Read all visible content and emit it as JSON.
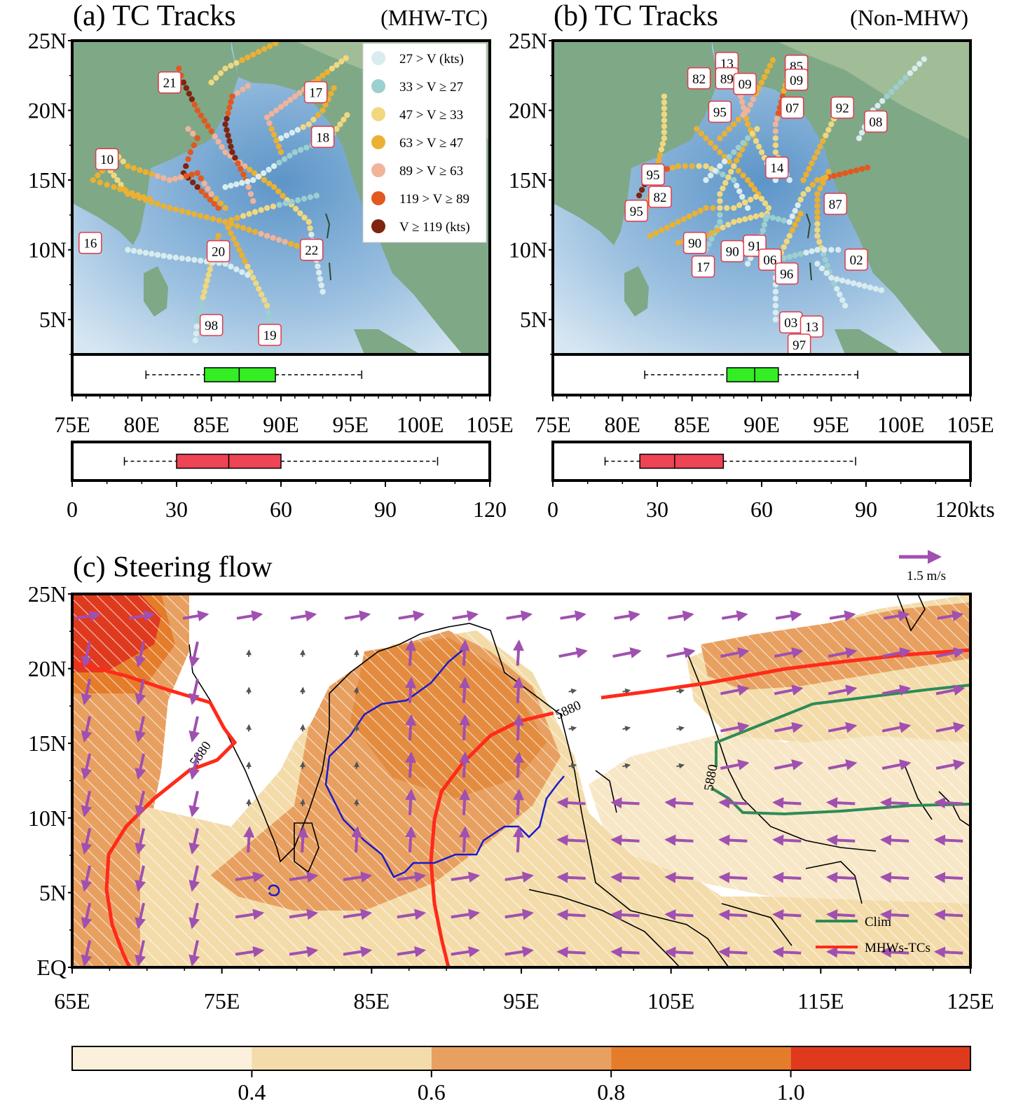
{
  "colors": {
    "sea_deep": "#a9c9e4",
    "sea_light": "#d9e8f3",
    "land": "#7fa886",
    "land_light": "#b7cdb1",
    "box_green": "#33ee22",
    "box_red": "#ee4455",
    "track_label_border": "#e03a4a",
    "clim_line": "#2e8b57",
    "mhw_line": "#ff2a1a",
    "blue_contour": "#1a1acc",
    "vector_sig": "#a050b0",
    "vector_insig": "#555555"
  },
  "wind_classes": [
    {
      "label": "27 > V (kts)",
      "color": "#d9ecef"
    },
    {
      "label": "33 > V ≥ 27",
      "color": "#9ccfd0"
    },
    {
      "label": "47 > V ≥ 33",
      "color": "#f0d880"
    },
    {
      "label": "63 > V ≥ 47",
      "color": "#ebb132"
    },
    {
      "label": "89 > V ≥ 63",
      "color": "#efb49a"
    },
    {
      "label": "119 > V ≥ 89",
      "color": "#e2581f"
    },
    {
      "label": "V ≥ 119 (kts)",
      "color": "#7e2410"
    }
  ],
  "panels": {
    "a": {
      "title": "(a) TC Tracks",
      "tag": "(MHW-TC)",
      "track_labels": [
        {
          "text": "21",
          "lon": 82.0,
          "lat": 22.0
        },
        {
          "text": "17",
          "lon": 92.5,
          "lat": 21.3
        },
        {
          "text": "18",
          "lon": 93.0,
          "lat": 18.1
        },
        {
          "text": "10",
          "lon": 77.5,
          "lat": 16.5
        },
        {
          "text": "16",
          "lon": 76.3,
          "lat": 10.5
        },
        {
          "text": "20",
          "lon": 85.5,
          "lat": 9.9
        },
        {
          "text": "22",
          "lon": 92.2,
          "lat": 10.0
        },
        {
          "text": "98",
          "lon": 85.0,
          "lat": 4.6
        },
        {
          "text": "19",
          "lon": 89.2,
          "lat": 3.9
        }
      ],
      "box_lon": {
        "whisker_low": 80.3,
        "q1": 84.5,
        "median": 87.0,
        "q3": 89.6,
        "whisker_high": 95.8
      },
      "box_speed": {
        "whisker_low": 15,
        "q1": 30,
        "median": 45,
        "q3": 60,
        "whisker_high": 105
      }
    },
    "b": {
      "title": "(b) TC Tracks",
      "tag": "(Non-MHW)",
      "track_labels": [
        {
          "text": "13",
          "lon": 87.5,
          "lat": 23.4
        },
        {
          "text": "85",
          "lon": 92.5,
          "lat": 23.2
        },
        {
          "text": "82",
          "lon": 85.5,
          "lat": 22.3
        },
        {
          "text": "89",
          "lon": 87.5,
          "lat": 22.3
        },
        {
          "text": "09",
          "lon": 88.8,
          "lat": 21.9
        },
        {
          "text": "09",
          "lon": 92.5,
          "lat": 22.2
        },
        {
          "text": "95",
          "lon": 87.0,
          "lat": 19.9
        },
        {
          "text": "07",
          "lon": 92.2,
          "lat": 20.2
        },
        {
          "text": "92",
          "lon": 95.8,
          "lat": 20.2
        },
        {
          "text": "08",
          "lon": 98.2,
          "lat": 19.2
        },
        {
          "text": "14",
          "lon": 91.1,
          "lat": 15.9
        },
        {
          "text": "95",
          "lon": 82.2,
          "lat": 15.4
        },
        {
          "text": "82",
          "lon": 82.7,
          "lat": 13.8
        },
        {
          "text": "95",
          "lon": 81.0,
          "lat": 12.8
        },
        {
          "text": "87",
          "lon": 95.3,
          "lat": 13.3
        },
        {
          "text": "90",
          "lon": 85.2,
          "lat": 10.5
        },
        {
          "text": "91",
          "lon": 89.5,
          "lat": 10.3
        },
        {
          "text": "90",
          "lon": 87.9,
          "lat": 9.9
        },
        {
          "text": "17",
          "lon": 85.8,
          "lat": 8.8
        },
        {
          "text": "06",
          "lon": 90.6,
          "lat": 9.3
        },
        {
          "text": "02",
          "lon": 96.8,
          "lat": 9.3
        },
        {
          "text": "96",
          "lon": 91.8,
          "lat": 8.3
        },
        {
          "text": "03",
          "lon": 92.1,
          "lat": 4.8
        },
        {
          "text": "13",
          "lon": 93.6,
          "lat": 4.5
        },
        {
          "text": "97",
          "lon": 92.7,
          "lat": 3.2
        }
      ],
      "box_lon": {
        "whisker_low": 81.6,
        "q1": 87.5,
        "median": 89.5,
        "q3": 91.2,
        "whisker_high": 96.9
      },
      "box_speed": {
        "whisker_low": 15,
        "q1": 25,
        "median": 35,
        "q3": 49,
        "whisker_high": 87
      }
    },
    "c": {
      "title": "(c) Steering flow",
      "ref_vector_label": "1.5 m/s",
      "contour_label": "5880",
      "legend": [
        {
          "label": "Clim",
          "color": "#2e8b57"
        },
        {
          "label": "MHWs-TCs",
          "color": "#ff2a1a"
        }
      ]
    }
  },
  "axes": {
    "ab_lat_ticks": [
      "25N",
      "20N",
      "15N",
      "10N",
      "5N"
    ],
    "ab_lon_ticks": [
      "75E",
      "80E",
      "85E",
      "90E",
      "95E",
      "100E",
      "105E"
    ],
    "speed_ticks_a": [
      "0",
      "30",
      "60",
      "90",
      "120"
    ],
    "speed_ticks_b": [
      "0",
      "30",
      "60",
      "90",
      "120kts"
    ],
    "c_lat_ticks": [
      "25N",
      "20N",
      "15N",
      "10N",
      "5N",
      "EQ"
    ],
    "c_lon_ticks": [
      "65E",
      "75E",
      "85E",
      "95E",
      "105E",
      "115E",
      "125E"
    ]
  },
  "colorbar": {
    "ticks": [
      "0.4",
      "0.6",
      "0.8",
      "1.0"
    ],
    "bins": [
      "#fbf0dc",
      "#f3dcaa",
      "#e8a060",
      "#e47c2a",
      "#e03a1e"
    ]
  },
  "chart_data": [
    {
      "type": "scatter",
      "title": "(a) TC Tracks (MHW-TC)",
      "x_range": [
        75,
        105
      ],
      "y_range": [
        2.5,
        25
      ],
      "xticks": [
        "75E",
        "80E",
        "85E",
        "90E",
        "95E",
        "100E",
        "105E"
      ],
      "yticks": [
        "25N",
        "20N",
        "15N",
        "10N",
        "5N"
      ],
      "legend_placement": "top-right",
      "series": [
        {
          "name": "27 > V (kts)"
        },
        {
          "name": "33 > V ≥ 27"
        },
        {
          "name": "47 > V ≥ 33"
        },
        {
          "name": "63 > V ≥ 47"
        },
        {
          "name": "89 > V ≥ 63"
        },
        {
          "name": "119 > V ≥ 89"
        },
        {
          "name": "V ≥ 119 (kts)"
        }
      ],
      "boxplots": {
        "genesis_longitude": {
          "min": 80.3,
          "q1": 84.5,
          "median": 87.0,
          "q3": 89.6,
          "max": 95.8
        },
        "max_wind_kts": {
          "min": 15,
          "q1": 30,
          "median": 45,
          "q3": 60,
          "max": 105
        }
      }
    },
    {
      "type": "scatter",
      "title": "(b) TC Tracks (Non-MHW)",
      "x_range": [
        75,
        105
      ],
      "y_range": [
        2.5,
        25
      ],
      "boxplots": {
        "genesis_longitude": {
          "min": 81.6,
          "q1": 87.5,
          "median": 89.5,
          "q3": 91.2,
          "max": 96.9
        },
        "max_wind_kts": {
          "min": 15,
          "q1": 25,
          "median": 35,
          "q3": 49,
          "max": 87
        }
      }
    },
    {
      "type": "heatmap",
      "title": "(c) Steering flow",
      "x_range": [
        65,
        125
      ],
      "y_range": [
        0,
        25
      ],
      "xticks": [
        "65E",
        "75E",
        "85E",
        "95E",
        "105E",
        "115E",
        "125E"
      ],
      "yticks": [
        "25N",
        "20N",
        "15N",
        "10N",
        "5N",
        "EQ"
      ],
      "colorbar_ticks": [
        0.4,
        0.6,
        0.8,
        1.0
      ],
      "contours": [
        {
          "name": "Clim",
          "level": 5880
        },
        {
          "name": "MHWs-TCs",
          "level": 5880
        }
      ],
      "reference_vector": "1.5 m/s"
    }
  ]
}
